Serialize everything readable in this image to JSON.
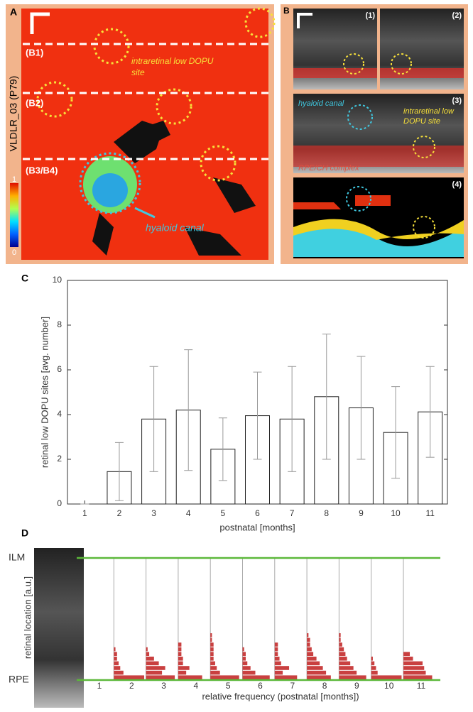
{
  "panel_a": {
    "letter": "A",
    "side_label": "VLDLR_03 (P79)",
    "lines": [
      "(B1)",
      "(B2)",
      "(B3/B4)"
    ],
    "site_label": "intraretinal low DOPU site",
    "canal_label": "hyaloid canal",
    "colorbar_max": "1",
    "colorbar_min": "0"
  },
  "panel_b": {
    "letter": "B",
    "frames": [
      "(1)",
      "(2)",
      "(3)",
      "(4)"
    ],
    "canal_label": "hyaloid canal",
    "site_label": "intraretinal low DOPU site",
    "complex_label": "RPE/CH complex"
  },
  "chart_data": [
    {
      "type": "bar",
      "letter": "C",
      "categories": [
        "1",
        "2",
        "3",
        "4",
        "5",
        "6",
        "7",
        "8",
        "9",
        "10",
        "11"
      ],
      "values": [
        0,
        1.45,
        3.8,
        4.2,
        2.45,
        3.95,
        3.8,
        4.8,
        4.3,
        3.2,
        4.12
      ],
      "errors": [
        0,
        1.3,
        2.35,
        2.7,
        1.4,
        1.95,
        2.35,
        2.8,
        2.3,
        2.05,
        2.03
      ],
      "ylim": [
        0,
        10
      ],
      "yticks": [
        0,
        2,
        4,
        6,
        8,
        10
      ],
      "color": "#ffffff",
      "ylabel": "retinal low DOPU sites [avg. number]",
      "xlabel": "postnatal [months]"
    },
    {
      "type": "histogram-group",
      "letter": "D",
      "categories": [
        "1",
        "2",
        "3",
        "4",
        "5",
        "6",
        "7",
        "8",
        "9",
        "10",
        "11"
      ],
      "values": [
        [
          0,
          0,
          0,
          0,
          0,
          0,
          0,
          0,
          0,
          0
        ],
        [
          0.95,
          0.3,
          0.2,
          0.15,
          0.1,
          0.1,
          0.05,
          0,
          0,
          0
        ],
        [
          0.9,
          0.5,
          0.6,
          0.4,
          0.25,
          0.1,
          0.05,
          0,
          0,
          0
        ],
        [
          0.75,
          0.25,
          0.35,
          0.15,
          0.15,
          0.1,
          0.1,
          0.1,
          0,
          0
        ],
        [
          0.9,
          0.3,
          0.2,
          0.15,
          0.1,
          0.1,
          0.1,
          0.1,
          0.05,
          0.05
        ],
        [
          0.85,
          0.4,
          0.25,
          0.15,
          0.1,
          0.1,
          0.05,
          0,
          0,
          0
        ],
        [
          0.7,
          0.25,
          0.45,
          0.2,
          0.15,
          0.1,
          0.1,
          0.1,
          0,
          0
        ],
        [
          0.75,
          0.6,
          0.5,
          0.4,
          0.3,
          0.2,
          0.15,
          0.1,
          0.1,
          0.05
        ],
        [
          0.85,
          0.55,
          0.45,
          0.35,
          0.25,
          0.2,
          0.15,
          0.1,
          0.05,
          0.05
        ],
        [
          0.95,
          0.2,
          0.15,
          0.1,
          0.05,
          0,
          0,
          0,
          0,
          0
        ],
        [
          0.9,
          0.7,
          0.65,
          0.6,
          0.3,
          0.2,
          0,
          0,
          0,
          0
        ]
      ],
      "color": "#c94040",
      "top_label": "ILM",
      "bottom_label": "RPE",
      "ylabel": "retinal location [a.u.]",
      "xlabel": "relative frequency (postnatal [months])"
    }
  ]
}
